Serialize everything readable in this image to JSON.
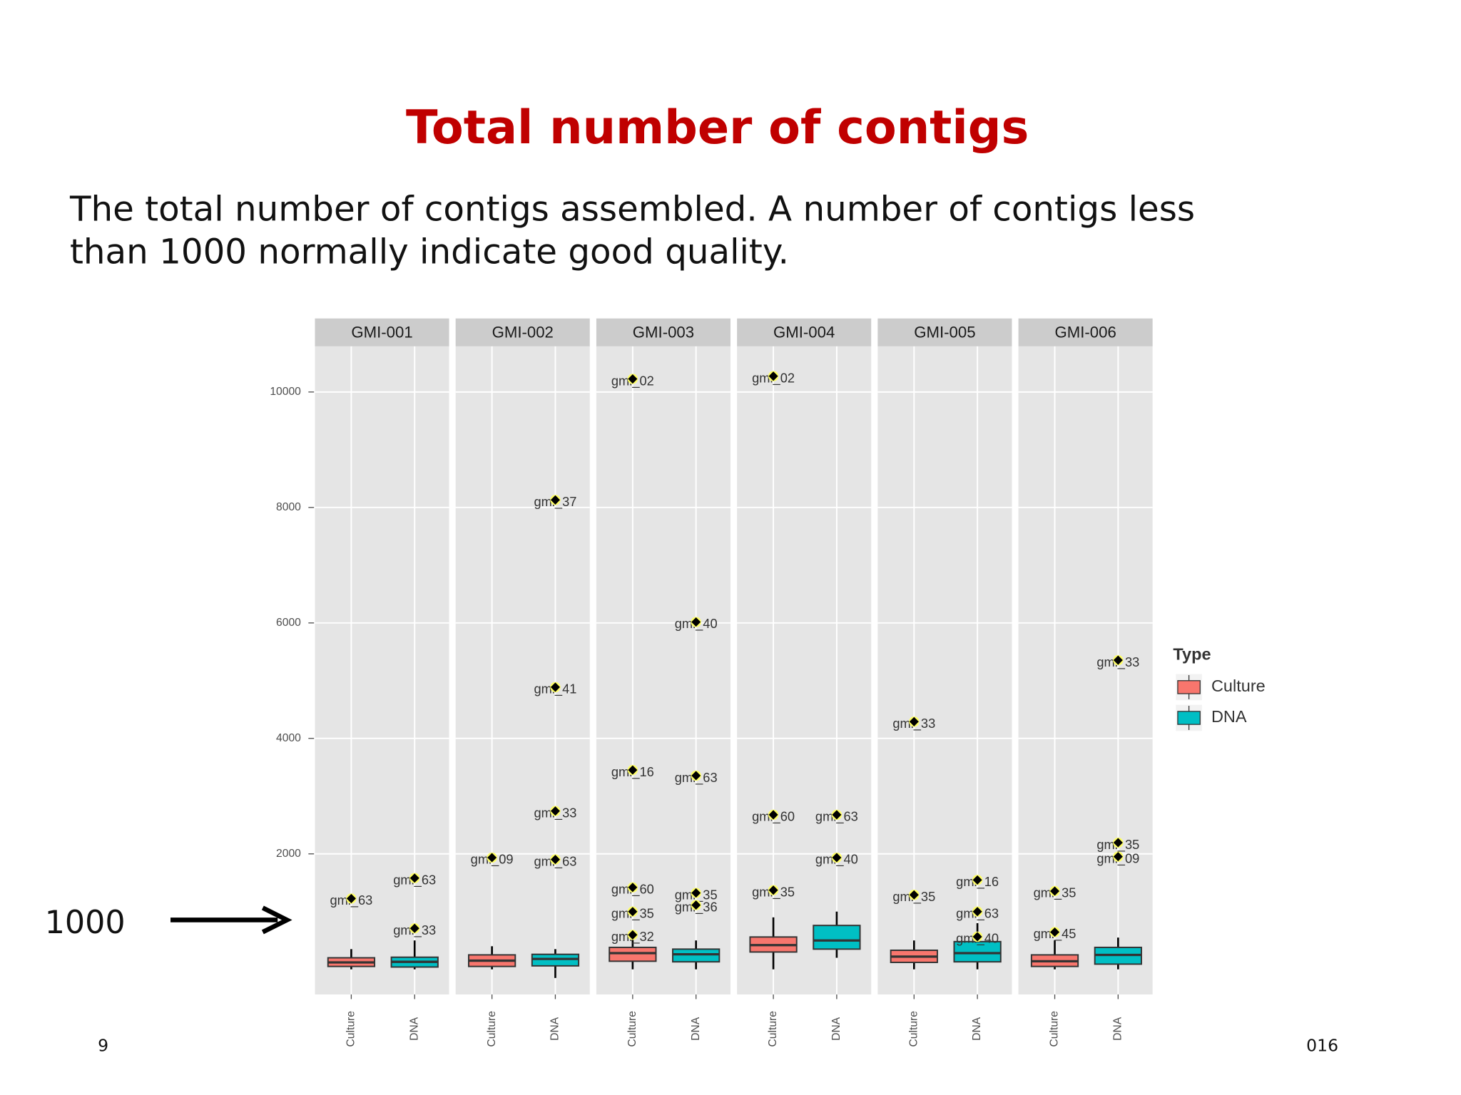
{
  "slide": {
    "title": "Total number of contigs",
    "body_lines": [
      "The total number of contigs assembled. A number of contigs less",
      "than 1000 normally indicate good quality."
    ],
    "annotation": "1000",
    "page_number": "9",
    "footer": "016"
  },
  "chart_data": {
    "type": "box",
    "categories": [
      "Culture",
      "DNA"
    ],
    "series": [
      {
        "name": "Culture",
        "color": "#f8766d"
      },
      {
        "name": "DNA",
        "color": "#00bfc4"
      }
    ],
    "legend_title": "Type",
    "ylim": [
      -435,
      10790
    ],
    "yticks": [
      2000,
      4000,
      6000,
      8000,
      10000
    ],
    "grid": true,
    "facets": [
      {
        "title": "GMI-001",
        "boxes": [
          {
            "whisker_low": 0,
            "q1": 50,
            "median": 120,
            "q3": 200,
            "whisker_high": 350,
            "outliers": [
              {
                "label": "gmi_63",
                "value": 1226
              }
            ]
          },
          {
            "whisker_low": 0,
            "q1": 40,
            "median": 130,
            "q3": 210,
            "whisker_high": 500,
            "outliers": [
              {
                "label": "gmi_63",
                "value": 1580
              },
              {
                "label": "gmi_33",
                "value": 710
              }
            ]
          }
        ]
      },
      {
        "title": "GMI-002",
        "boxes": [
          {
            "whisker_low": 0,
            "q1": 50,
            "median": 150,
            "q3": 250,
            "whisker_high": 400,
            "outliers": [
              {
                "label": "gmi_09",
                "value": 1935
              }
            ]
          },
          {
            "whisker_low": -150,
            "q1": 60,
            "median": 180,
            "q3": 260,
            "whisker_high": 350,
            "outliers": [
              {
                "label": "gmi_37",
                "value": 8130
              },
              {
                "label": "gmi_41",
                "value": 4887
              },
              {
                "label": "gmi_33",
                "value": 2742
              },
              {
                "label": "gmi_63",
                "value": 1903
              }
            ]
          }
        ]
      },
      {
        "title": "GMI-003",
        "boxes": [
          {
            "whisker_low": 0,
            "q1": 140,
            "median": 280,
            "q3": 380,
            "whisker_high": 550,
            "outliers": [
              {
                "label": "gmi_02",
                "value": 10226
              },
              {
                "label": "gmi_16",
                "value": 3452
              },
              {
                "label": "gmi_60",
                "value": 1419
              },
              {
                "label": "gmi_35",
                "value": 1000
              },
              {
                "label": "gmi_32",
                "value": 597
              }
            ]
          },
          {
            "whisker_low": 0,
            "q1": 130,
            "median": 260,
            "q3": 350,
            "whisker_high": 500,
            "outliers": [
              {
                "label": "gmi_40",
                "value": 6016
              },
              {
                "label": "gmi_63",
                "value": 3355
              },
              {
                "label": "gmi_35",
                "value": 1323
              },
              {
                "label": "gmi_36",
                "value": 1113
              }
            ]
          }
        ]
      },
      {
        "title": "GMI-004",
        "boxes": [
          {
            "whisker_low": 0,
            "q1": 300,
            "median": 420,
            "q3": 560,
            "whisker_high": 900,
            "outliers": [
              {
                "label": "gmi_02",
                "value": 10274
              },
              {
                "label": "gmi_60",
                "value": 2677
              },
              {
                "label": "gmi_35",
                "value": 1371
              }
            ]
          },
          {
            "whisker_low": 200,
            "q1": 350,
            "median": 500,
            "q3": 760,
            "whisker_high": 1000,
            "outliers": [
              {
                "label": "gmi_63",
                "value": 2677
              },
              {
                "label": "gmi_40",
                "value": 1935
              }
            ]
          }
        ]
      },
      {
        "title": "GMI-005",
        "boxes": [
          {
            "whisker_low": 0,
            "q1": 120,
            "median": 220,
            "q3": 330,
            "whisker_high": 500,
            "outliers": [
              {
                "label": "gmi_33",
                "value": 4290
              },
              {
                "label": "gmi_35",
                "value": 1290
              }
            ]
          },
          {
            "whisker_low": 0,
            "q1": 130,
            "median": 280,
            "q3": 480,
            "whisker_high": 800,
            "outliers": [
              {
                "label": "gmi_16",
                "value": 1548
              },
              {
                "label": "gmi_63",
                "value": 1000
              },
              {
                "label": "gmi_40",
                "value": 565
              }
            ]
          }
        ]
      },
      {
        "title": "GMI-006",
        "boxes": [
          {
            "whisker_low": 0,
            "q1": 50,
            "median": 140,
            "q3": 250,
            "whisker_high": 500,
            "outliers": [
              {
                "label": "gmi_35",
                "value": 1355
              },
              {
                "label": "gmi_45",
                "value": 645
              }
            ]
          },
          {
            "whisker_low": 0,
            "q1": 90,
            "median": 250,
            "q3": 380,
            "whisker_high": 550,
            "outliers": [
              {
                "label": "gmi_33",
                "value": 5355
              },
              {
                "label": "gmi_35",
                "value": 2194
              },
              {
                "label": "gmi_09",
                "value": 1952
              }
            ]
          }
        ]
      }
    ]
  }
}
